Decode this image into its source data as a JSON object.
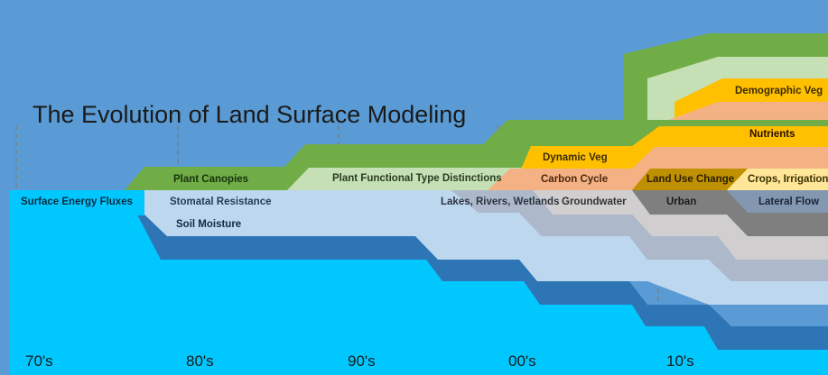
{
  "title": "The Evolution of Land Surface Modeling",
  "decades": [
    "70's",
    "80's",
    "90's",
    "00's",
    "10's"
  ],
  "bands": {
    "surface_energy_fluxes": "Surface Energy Fluxes",
    "stomatal_resistance": "Stomatal Resistance",
    "soil_moisture": "Soil Moisture",
    "plant_canopies": "Plant Canopies",
    "plant_functional_types": "Plant Functional Type Distinctions",
    "lakes_rivers_wetlands": "Lakes, Rivers, Wetlands",
    "groundwater": "Groundwater",
    "carbon_cycle": "Carbon Cycle",
    "dynamic_veg": "Dynamic Veg",
    "land_use_change": "Land Use Change",
    "urban": "Urban",
    "nutrients": "Nutrients",
    "crops_irrigation": "Crops, Irrigation",
    "lateral_flow": "Lateral Flow",
    "demographic_veg": "Demographic Veg"
  },
  "colors": {
    "background": "#5B9BD5",
    "surface_energy_fluxes": "#00C8FF",
    "stomatal_resistance": "#BDD7EE",
    "soil_moisture": "#2E75B6",
    "plant_canopies": "#70AD47",
    "plant_functional_types": "#C5E0B4",
    "lakes_rivers_wetlands": "#ADB9CA",
    "groundwater": "#D0CECE",
    "carbon_cycle": "#F4B183",
    "dynamic_veg": "#FFC000",
    "land_use_change": "#BF9000",
    "urban": "#7F7F7F",
    "nutrients": "#C55A11",
    "crops_irrigation": "#FFE699",
    "lateral_flow": "#8497B0",
    "demographic_veg": "#FFC000"
  }
}
